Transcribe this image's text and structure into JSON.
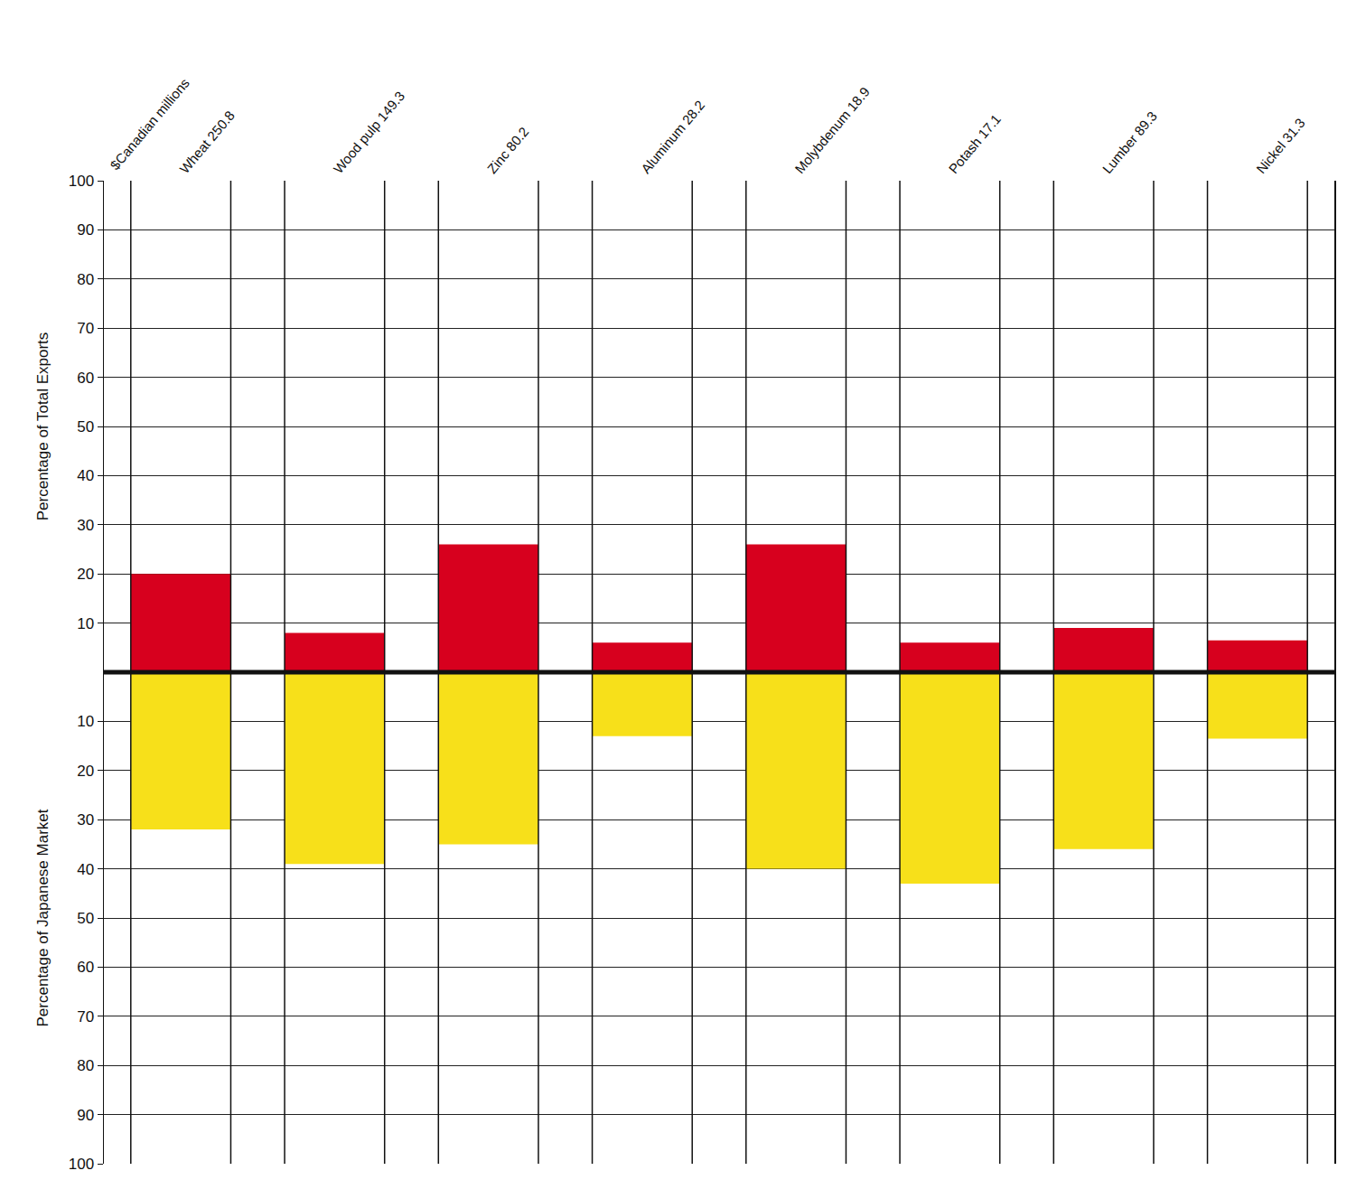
{
  "chart_data": {
    "type": "bar",
    "categories": [
      "Wheat 250.8",
      "Wood pulp 149.3",
      "Zinc 80.2",
      "Aluminum 28.2",
      "Molybdenum 18.9",
      "Potash 17.1",
      "Lumber 89.3",
      "Nickel 31.3"
    ],
    "series": [
      {
        "color": "#d7001e",
        "values": [
          20,
          8,
          26,
          6,
          26,
          6,
          9,
          6.5
        ]
      },
      {
        "color": "#f7e01a",
        "values": [
          32,
          39,
          35,
          13,
          40,
          43,
          36,
          13.5
        ],
        "axis": "y2"
      }
    ],
    "y_label": "Percentage of Total Exports",
    "y2_label": "Percentage of Japanese Market",
    "ylim": [
      0,
      100
    ],
    "yticks": [
      10,
      20,
      30,
      40,
      50,
      60,
      70,
      80,
      90,
      100
    ],
    "y2lim": [
      0,
      100
    ],
    "y2ticks": [
      10,
      20,
      30,
      40,
      50,
      60,
      70,
      80,
      90,
      100
    ],
    "annotations": [
      {
        "text": "$Canadian millions"
      }
    ],
    "grid": true
  }
}
